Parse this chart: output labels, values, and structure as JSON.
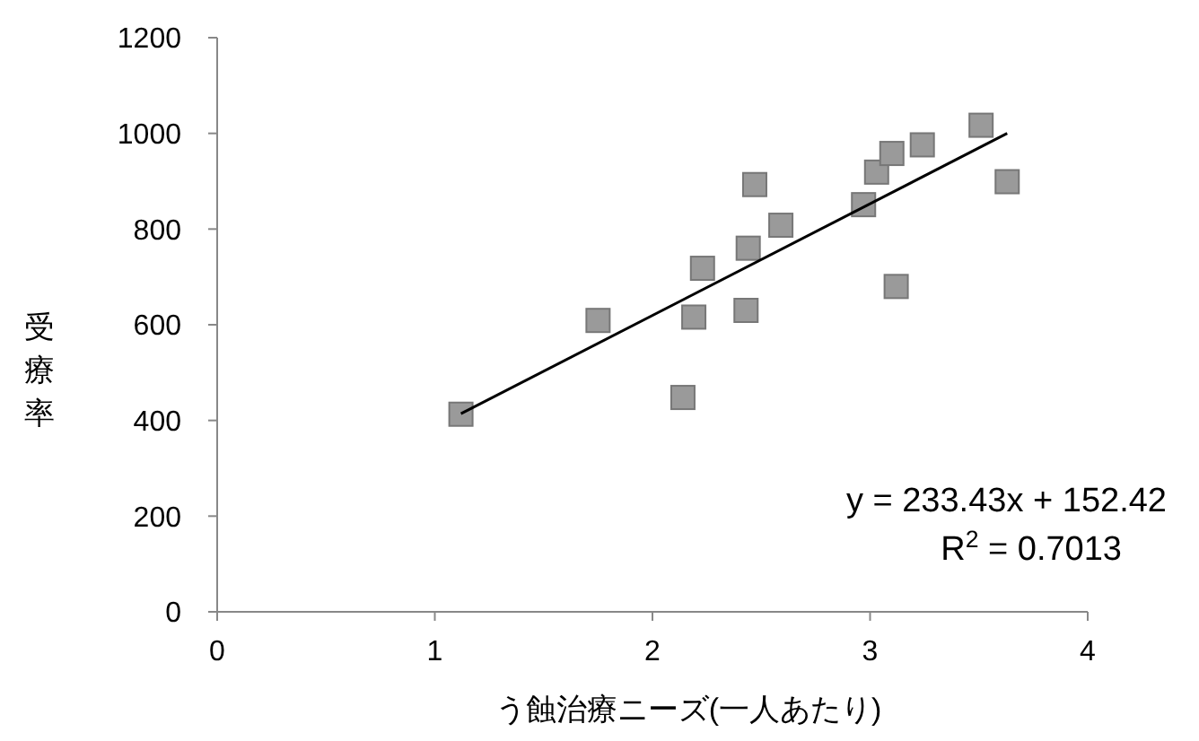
{
  "chart_data": {
    "type": "scatter",
    "xlabel": "う蝕治療ニーズ(一人あたり)",
    "ylabel": "受療率",
    "xlim": [
      0,
      4
    ],
    "xticks": [
      0,
      1,
      2,
      3,
      4
    ],
    "ylim": [
      0,
      1200
    ],
    "yticks": [
      0,
      200,
      400,
      600,
      800,
      1000,
      1200
    ],
    "grid": false,
    "series": [
      {
        "marker": "square",
        "color": "#9a9a9a",
        "x": [
          1.12,
          1.75,
          2.14,
          2.19,
          2.23,
          2.43,
          2.44,
          2.47,
          2.59,
          2.97,
          3.03,
          3.1,
          3.12,
          3.24,
          3.51,
          3.63
        ],
        "values": [
          413,
          609,
          448,
          616,
          718,
          630,
          760,
          893,
          808,
          851,
          919,
          958,
          680,
          976,
          1017,
          899
        ]
      },
      {
        "type": "line",
        "color": "#000000",
        "x": [
          1.12,
          3.63
        ],
        "values": [
          414,
          1000
        ]
      }
    ],
    "annotations": [
      "y = 233.43x + 152.42",
      "R$^{2}$ = 0.7013"
    ]
  }
}
